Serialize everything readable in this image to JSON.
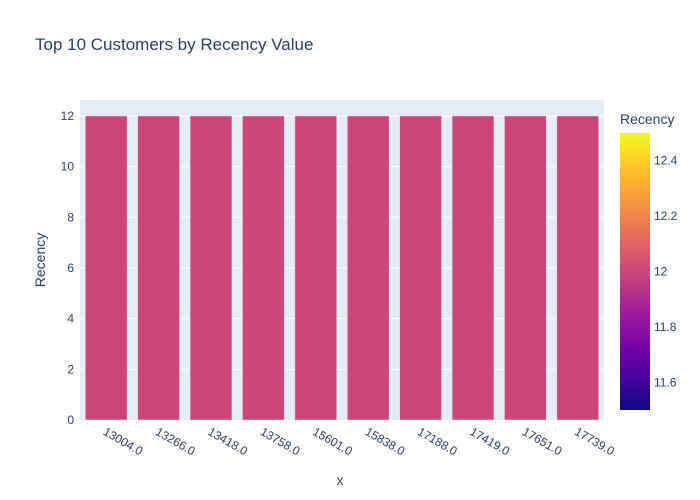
{
  "chart_data": {
    "type": "bar",
    "title": "Top 10 Customers by Recency Value",
    "xlabel": "x",
    "ylabel": "Recency",
    "categories": [
      "13004.0",
      "13266.0",
      "13418.0",
      "13758.0",
      "15601.0",
      "15838.0",
      "17188.0",
      "17419.0",
      "17651.0",
      "17739.0"
    ],
    "values": [
      12,
      12,
      12,
      12,
      12,
      12,
      12,
      12,
      12,
      12
    ],
    "ylim": [
      0,
      12.63
    ],
    "yticks": [
      "0",
      "2",
      "4",
      "6",
      "8",
      "10",
      "12"
    ],
    "grid": true,
    "colorbar": {
      "title": "Recency",
      "range": [
        11.5,
        12.5
      ],
      "ticks": [
        "11.6",
        "11.8",
        "12",
        "12.2",
        "12.4"
      ],
      "colors": [
        "#0d0887",
        "#46039f",
        "#7201a8",
        "#9c179e",
        "#bd3786",
        "#d8576b",
        "#ed7953",
        "#fb9f3a",
        "#fdca26",
        "#f0f921"
      ]
    },
    "bar_color": "#cc4778",
    "plot_bg": "#e5ecf6"
  }
}
